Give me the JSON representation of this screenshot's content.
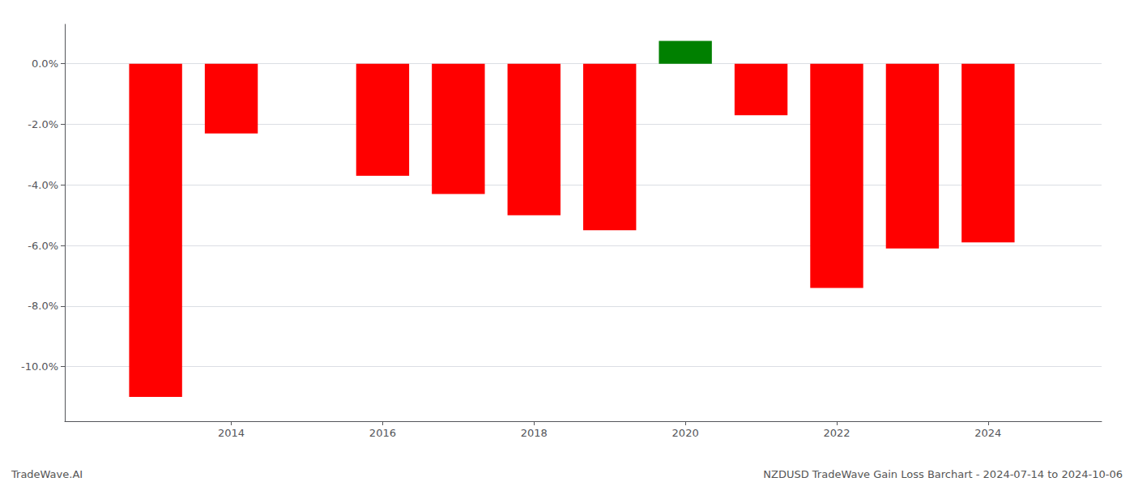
{
  "chart_data": {
    "type": "bar",
    "x": [
      2013,
      2014,
      2016,
      2017,
      2018,
      2019,
      2020,
      2021,
      2022,
      2023,
      2024
    ],
    "values": [
      -11.0,
      -2.3,
      -3.7,
      -4.3,
      -5.0,
      -5.5,
      0.75,
      -1.7,
      -7.4,
      -6.1,
      -5.9
    ],
    "colors": [
      "#ff0000",
      "#ff0000",
      "#ff0000",
      "#ff0000",
      "#ff0000",
      "#ff0000",
      "#008000",
      "#ff0000",
      "#ff0000",
      "#ff0000",
      "#ff0000"
    ],
    "xlim": [
      2011.8,
      2025.5
    ],
    "xticks": [
      2014,
      2016,
      2018,
      2020,
      2022,
      2024
    ],
    "ylim": [
      -11.8,
      1.3
    ],
    "yticks": [
      {
        "value": 0.0,
        "label": "0.0%"
      },
      {
        "value": -2.0,
        "label": "-2.0%"
      },
      {
        "value": -4.0,
        "label": "-4.0%"
      },
      {
        "value": -6.0,
        "label": "-6.0%"
      },
      {
        "value": -8.0,
        "label": "-8.0%"
      },
      {
        "value": -10.0,
        "label": "-10.0%"
      }
    ],
    "grid": true,
    "annotations": [
      "TradeWave.AI",
      "NZDUSD TradeWave Gain Loss Barchart - 2024-07-14 to 2024-10-06"
    ]
  }
}
